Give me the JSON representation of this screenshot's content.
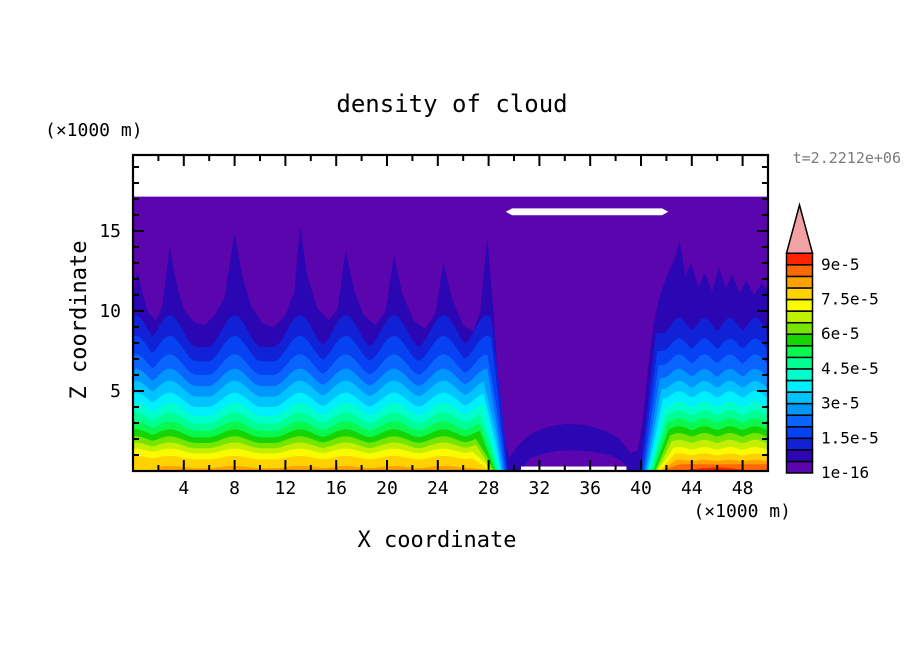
{
  "title": "density of cloud",
  "time_label": "t=2.2212e+06",
  "axes": {
    "x_label": "X coordinate",
    "z_label": "Z coordinate",
    "x_unit_label": "(×1000 m)",
    "z_unit_label": "(×1000 m)",
    "x_range": [
      0,
      50
    ],
    "z_range": [
      0,
      19.75
    ],
    "x_major_ticks": [
      4,
      8,
      12,
      16,
      20,
      24,
      28,
      32,
      36,
      40,
      44,
      48
    ],
    "x_minor_ticks": [
      2,
      6,
      10,
      14,
      18,
      22,
      26,
      30,
      34,
      38,
      42,
      46
    ],
    "z_major_ticks": [
      5,
      10,
      15
    ],
    "z_minor_ticks": [
      1,
      2,
      3,
      4,
      6,
      7,
      8,
      9,
      11,
      12,
      13,
      14,
      16,
      17,
      18,
      19
    ]
  },
  "colorbar": {
    "labels_bottom_to_top": [
      "1e-16",
      "1.5e-5",
      "3e-5",
      "4.5e-5",
      "6e-5",
      "7.5e-5",
      "9e-5"
    ],
    "colors_bottom_to_top": [
      "#5A05AD",
      "#2B06B3",
      "#1021D6",
      "#0742F2",
      "#0A65FF",
      "#0096FF",
      "#00C3FF",
      "#00EFFF",
      "#00FFCB",
      "#00FF92",
      "#09F74F",
      "#16D400",
      "#76E600",
      "#C3F000",
      "#FAFA00",
      "#FFD200",
      "#FFA200",
      "#FF6A00",
      "#FF2200"
    ],
    "overflow_color": "#F2A2A2",
    "box_count": 19
  },
  "chart_data": {
    "type": "filled_contour",
    "title": "density of cloud",
    "xlabel": "X coordinate (×1000 m)",
    "ylabel": "Z coordinate (×1000 m)",
    "x_range": [
      0,
      50
    ],
    "z_range": [
      0,
      19.75
    ],
    "contour_levels": [
      1e-16,
      5e-06,
      1e-05,
      1.5e-05,
      2e-05,
      2.5e-05,
      3e-05,
      3.5e-05,
      4e-05,
      4.5e-05,
      5e-05,
      5.5e-05,
      6e-05,
      6.5e-05,
      7e-05,
      7.5e-05,
      8e-05,
      8.5e-05,
      9e-05,
      9.5e-05
    ],
    "time": 2221200,
    "model": {
      "cloud_top": 17.15,
      "left_crests": [
        0.2,
        2.9,
        8.0,
        13.15,
        16.75,
        20.55,
        24.45,
        27.9
      ],
      "left_halfwidth": 2.1,
      "right_crests": [
        43.0,
        45.0,
        47.0,
        49.0
      ],
      "right_halfwidth": 1.3,
      "navy_profile": [
        [
          0,
          10.6
        ],
        [
          0.35,
          12.6
        ],
        [
          0.7,
          11.2
        ],
        [
          1.2,
          9.9
        ],
        [
          1.8,
          9.4
        ],
        [
          2.3,
          10.3
        ],
        [
          2.9,
          14.0
        ],
        [
          3.4,
          11.8
        ],
        [
          4.0,
          10.1
        ],
        [
          4.8,
          9.3
        ],
        [
          5.6,
          9.1
        ],
        [
          6.4,
          9.7
        ],
        [
          7.2,
          10.8
        ],
        [
          8.0,
          14.9
        ],
        [
          8.6,
          12.2
        ],
        [
          9.3,
          10.3
        ],
        [
          10.2,
          9.2
        ],
        [
          11.1,
          9.0
        ],
        [
          12.0,
          9.7
        ],
        [
          12.7,
          11.2
        ],
        [
          13.15,
          15.3
        ],
        [
          13.7,
          12.3
        ],
        [
          14.5,
          10.2
        ],
        [
          15.4,
          9.4
        ],
        [
          16.1,
          10.1
        ],
        [
          16.75,
          13.8
        ],
        [
          17.4,
          11.3
        ],
        [
          18.2,
          9.7
        ],
        [
          19.1,
          9.1
        ],
        [
          19.9,
          10.0
        ],
        [
          20.55,
          13.5
        ],
        [
          21.2,
          11.1
        ],
        [
          22.1,
          9.4
        ],
        [
          23.0,
          8.9
        ],
        [
          23.8,
          9.8
        ],
        [
          24.45,
          13.0
        ],
        [
          25.1,
          10.8
        ],
        [
          26.0,
          9.1
        ],
        [
          26.8,
          8.7
        ],
        [
          27.35,
          10.0
        ],
        [
          27.9,
          14.6
        ],
        [
          28.35,
          10.3
        ],
        [
          28.7,
          6.2
        ],
        [
          29.1,
          2.8
        ],
        [
          29.6,
          0.8
        ],
        [
          30.3,
          1.6
        ],
        [
          31.3,
          2.3
        ],
        [
          32.6,
          2.75
        ],
        [
          34.2,
          2.95
        ],
        [
          35.8,
          2.85
        ],
        [
          37.2,
          2.5
        ],
        [
          38.3,
          2.0
        ],
        [
          39.2,
          1.1
        ],
        [
          39.75,
          1.3
        ],
        [
          40.15,
          3.2
        ],
        [
          40.55,
          6.4
        ],
        [
          41.0,
          9.2
        ],
        [
          41.5,
          11.0
        ],
        [
          42.1,
          12.3
        ],
        [
          42.65,
          13.3
        ],
        [
          43.05,
          14.4
        ],
        [
          43.5,
          12.2
        ],
        [
          43.95,
          13.0
        ],
        [
          44.5,
          11.5
        ],
        [
          45.05,
          12.4
        ],
        [
          45.6,
          11.2
        ],
        [
          46.15,
          12.7
        ],
        [
          46.7,
          11.4
        ],
        [
          47.2,
          12.3
        ],
        [
          47.75,
          11.1
        ],
        [
          48.3,
          11.9
        ],
        [
          48.9,
          11.0
        ],
        [
          49.5,
          11.7
        ],
        [
          50,
          11.3
        ]
      ],
      "bands": [
        {
          "left": [
            7.75,
            2.0
          ],
          "right": [
            8.6,
            1.0
          ]
        },
        {
          "left": [
            6.85,
            1.6
          ],
          "right": [
            7.5,
            0.8
          ]
        },
        {
          "left": [
            6.0,
            1.3
          ],
          "right": [
            6.6,
            0.7
          ]
        },
        {
          "left": [
            5.3,
            1.1
          ],
          "right": [
            5.8,
            0.6
          ]
        },
        {
          "left": [
            4.65,
            1.0
          ],
          "right": [
            5.1,
            0.55
          ]
        },
        {
          "left": [
            4.0,
            0.9
          ],
          "right": [
            4.5,
            0.5
          ]
        },
        {
          "left": [
            3.45,
            0.8
          ],
          "right": [
            3.9,
            0.45
          ]
        },
        {
          "left": [
            2.95,
            0.7
          ],
          "right": [
            3.4,
            0.4
          ]
        },
        {
          "left": [
            2.5,
            0.6
          ],
          "right": [
            2.95,
            0.35
          ]
        },
        {
          "left": [
            2.1,
            0.5
          ],
          "right": [
            2.5,
            0.3
          ]
        },
        {
          "left": [
            1.75,
            0.42
          ],
          "right": [
            2.1,
            0.28
          ]
        },
        {
          "left": [
            1.42,
            0.36
          ],
          "right": [
            1.7,
            0.25
          ]
        },
        {
          "left": [
            1.1,
            0.3
          ],
          "right": [
            1.3,
            0.2
          ]
        },
        {
          "left": [
            0.72,
            0.22
          ],
          "right": [
            0.95,
            0.15
          ]
        },
        {
          "left": [
            0.18,
            0.14
          ],
          "right": [
            0.6,
            0.1
          ]
        }
      ],
      "pinch_left_start": 29.55,
      "pinch_right_start": 39.95,
      "pinch_step": 0.115,
      "orange_red_ramp": {
        "x0": 41.7,
        "h": 0.42
      },
      "red_dome": {
        "x0": 43.2,
        "x1": 48.6,
        "h": 0.22
      },
      "center_purple_dome": [
        [
          30.45,
          0
        ],
        [
          31.3,
          0.8
        ],
        [
          32.4,
          1.12
        ],
        [
          33.6,
          1.28
        ],
        [
          35.0,
          1.3
        ],
        [
          36.4,
          1.18
        ],
        [
          37.6,
          0.98
        ],
        [
          38.5,
          0.62
        ],
        [
          39.1,
          0
        ]
      ],
      "white_strip": {
        "x0": 30.55,
        "x1": 38.85,
        "z1": 0.28
      },
      "white_line": {
        "x0": 29.35,
        "x1": 42.15,
        "z": 16.2,
        "half_thick": 0.21
      }
    }
  }
}
